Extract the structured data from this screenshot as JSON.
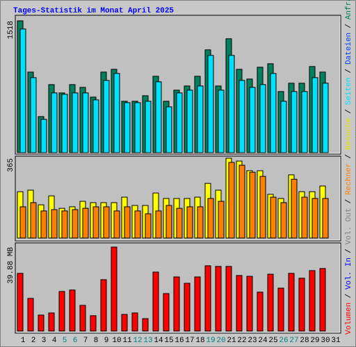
{
  "title": "Tages-Statistik im Monat April 2025",
  "side_legend": {
    "separator": "/",
    "items": [
      {
        "name": "Volumen",
        "color": "#ff0000"
      },
      {
        "name": "Vol. In",
        "color": "#0000ff"
      },
      {
        "name": "Vol. Out",
        "color": "#808080"
      },
      {
        "name": "Rechner",
        "color": "#ff8000"
      },
      {
        "name": "Besuche",
        "color": "#e0e000"
      },
      {
        "name": "Seiten",
        "color": "#00e0ff"
      },
      {
        "name": "Dateien",
        "color": "#0040ff"
      },
      {
        "name": "Anfragen",
        "color": "#00805c"
      }
    ]
  },
  "chart_data": [
    {
      "type": "bar",
      "ylim": [
        0,
        1518
      ],
      "yticks": [
        1518
      ],
      "series": [
        {
          "color": "#00805c",
          "values": [
            1518,
            928,
            416,
            784,
            688,
            784,
            752,
            640,
            928,
            960,
            592,
            592,
            656,
            880,
            592,
            720,
            768,
            880,
            1184,
            768,
            1312,
            960,
            848,
            984,
            1024,
            704,
            800,
            800,
            992,
            928,
            null
          ]
        },
        {
          "color": "#00e0ff",
          "values": [
            1424,
            864,
            384,
            688,
            672,
            688,
            688,
            608,
            832,
            912,
            576,
            576,
            592,
            816,
            528,
            688,
            720,
            768,
            1120,
            720,
            1120,
            832,
            752,
            784,
            912,
            592,
            704,
            704,
            864,
            800,
            null
          ]
        }
      ]
    },
    {
      "type": "bar",
      "ylim": [
        0,
        365
      ],
      "yticks": [
        365
      ],
      "series": [
        {
          "color": "#ffff00",
          "values": [
            212,
            219,
            152,
            193,
            136,
            143,
            168,
            162,
            162,
            162,
            187,
            149,
            149,
            206,
            181,
            181,
            181,
            187,
            250,
            219,
            365,
            352,
            308,
            308,
            200,
            181,
            289,
            212,
            212,
            238,
            null
          ]
        },
        {
          "color": "#ff8000",
          "values": [
            143,
            162,
            124,
            130,
            124,
            130,
            136,
            143,
            143,
            124,
            143,
            124,
            111,
            124,
            149,
            136,
            143,
            143,
            181,
            168,
            346,
            333,
            301,
            282,
            187,
            162,
            269,
            187,
            181,
            181,
            null
          ]
        }
      ]
    },
    {
      "type": "bar",
      "ylim": [
        0,
        39.88
      ],
      "yticks": [
        {
          "value": 39.88,
          "label": "39.88 MB"
        }
      ],
      "categories": [
        "1",
        "2",
        "3",
        "4",
        "5",
        "6",
        "7",
        "8",
        "9",
        "10",
        "11",
        "12",
        "13",
        "14",
        "15",
        "16",
        "17",
        "18",
        "19",
        "20",
        "21",
        "22",
        "23",
        "24",
        "25",
        "26",
        "27",
        "28",
        "29",
        "30",
        "31"
      ],
      "category_colors": [
        "#000000",
        "#000000",
        "#000000",
        "#000000",
        "#008080",
        "#008080",
        "#000000",
        "#000000",
        "#000000",
        "#000000",
        "#000000",
        "#008080",
        "#008080",
        "#000000",
        "#000000",
        "#000000",
        "#000000",
        "#000000",
        "#008080",
        "#008080",
        "#000000",
        "#000000",
        "#000000",
        "#000000",
        "#000000",
        "#008080",
        "#008080",
        "#000000",
        "#000000",
        "#000000",
        "#000000"
      ],
      "series": [
        {
          "color": "#ff0000",
          "values": [
            27.4,
            15.5,
            7.6,
            8.6,
            18.8,
            19.5,
            12.2,
            7.3,
            24.4,
            39.88,
            7.9,
            8.6,
            5.9,
            28.0,
            17.8,
            25.7,
            22.7,
            25.7,
            31.0,
            30.7,
            30.7,
            26.4,
            26.0,
            18.5,
            27.0,
            20.4,
            27.4,
            25.1,
            28.7,
            29.7,
            null
          ]
        }
      ]
    }
  ]
}
